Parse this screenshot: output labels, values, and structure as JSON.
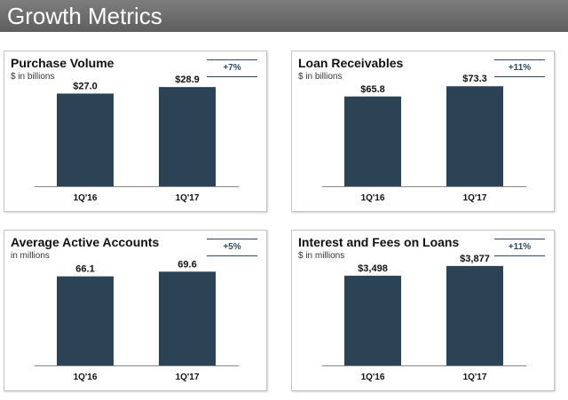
{
  "header": {
    "title": "Growth Metrics"
  },
  "colors": {
    "bar": "#2c4356",
    "badge": "#2f4a5d",
    "header_bg": "#6b6b6b"
  },
  "chart_data": [
    {
      "type": "bar",
      "title": "Purchase Volume",
      "subtitle": "$ in billions",
      "growth": "+7%",
      "categories": [
        "1Q'16",
        "1Q'17"
      ],
      "values": [
        27.0,
        28.9
      ],
      "value_labels": [
        "$27.0",
        "$28.9"
      ],
      "ylim": [
        0,
        31
      ]
    },
    {
      "type": "bar",
      "title": "Loan Receivables",
      "subtitle": "$ in billions",
      "growth": "+11%",
      "categories": [
        "1Q'16",
        "1Q'17"
      ],
      "values": [
        65.8,
        73.3
      ],
      "value_labels": [
        "$65.8",
        "$73.3"
      ],
      "ylim": [
        0,
        78
      ]
    },
    {
      "type": "bar",
      "title": "Average Active Accounts",
      "subtitle": "in millions",
      "growth": "+5%",
      "categories": [
        "1Q'16",
        "1Q'17"
      ],
      "values": [
        66.1,
        69.6
      ],
      "value_labels": [
        "66.1",
        "69.6"
      ],
      "ylim": [
        0,
        79
      ]
    },
    {
      "type": "bar",
      "title": "Interest and Fees on Loans",
      "subtitle": "$ in millions",
      "growth": "+11%",
      "categories": [
        "1Q'16",
        "1Q'17"
      ],
      "values": [
        3498,
        3877
      ],
      "value_labels": [
        "$3,498",
        "$3,877"
      ],
      "ylim": [
        0,
        4150
      ]
    }
  ]
}
